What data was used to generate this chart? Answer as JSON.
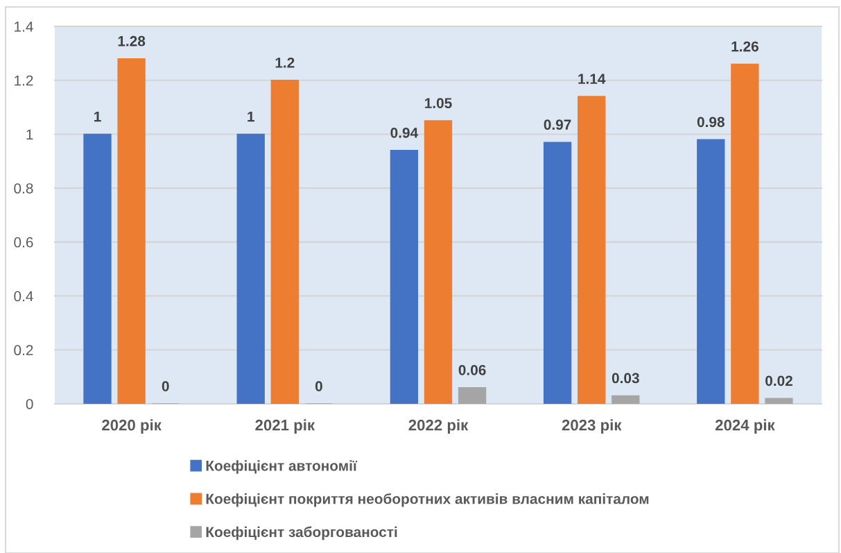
{
  "chart_data": {
    "type": "bar",
    "categories": [
      "2020 рік",
      "2021 рік",
      "2022 рік",
      "2023 рік",
      "2024 рік"
    ],
    "series": [
      {
        "name": "Коефіцієнт автономії",
        "color": "#4472c4",
        "values": [
          1,
          1,
          0.94,
          0.97,
          0.98
        ]
      },
      {
        "name": "Коефіцієнт покриття необоротних активів власним капіталом",
        "color": "#ed7d31",
        "values": [
          1.28,
          1.2,
          1.05,
          1.14,
          1.26
        ]
      },
      {
        "name": "Коефіцієнт заборгованості",
        "color": "#a5a5a5",
        "values": [
          0,
          0,
          0.06,
          0.03,
          0.02
        ]
      }
    ],
    "ylim": [
      0,
      1.4
    ],
    "yticks": [
      0,
      0.2,
      0.4,
      0.6,
      0.8,
      1,
      1.2,
      1.4
    ],
    "grid": "y",
    "legend": "bottom",
    "data_labels": true
  }
}
